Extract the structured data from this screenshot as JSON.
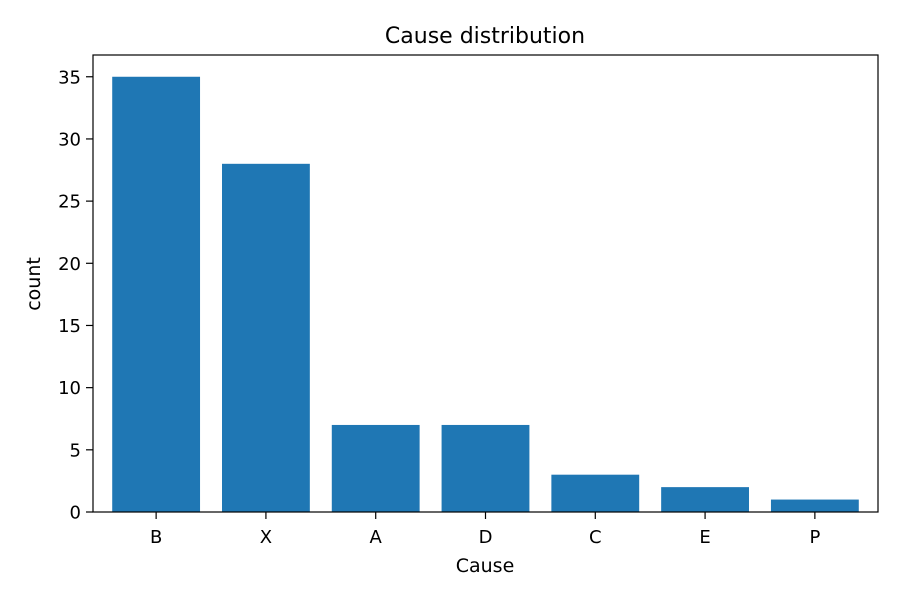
{
  "chart_data": {
    "type": "bar",
    "title": "Cause distribution",
    "xlabel": "Cause",
    "ylabel": "count",
    "categories": [
      "B",
      "X",
      "A",
      "D",
      "C",
      "E",
      "P"
    ],
    "values": [
      35,
      28,
      7,
      7,
      3,
      2,
      1
    ],
    "ylim": [
      0,
      36.75
    ],
    "yticks": [
      0,
      5,
      10,
      15,
      20,
      25,
      30,
      35
    ],
    "bar_color": "#1f77b4",
    "grid": false,
    "legend": "none"
  }
}
